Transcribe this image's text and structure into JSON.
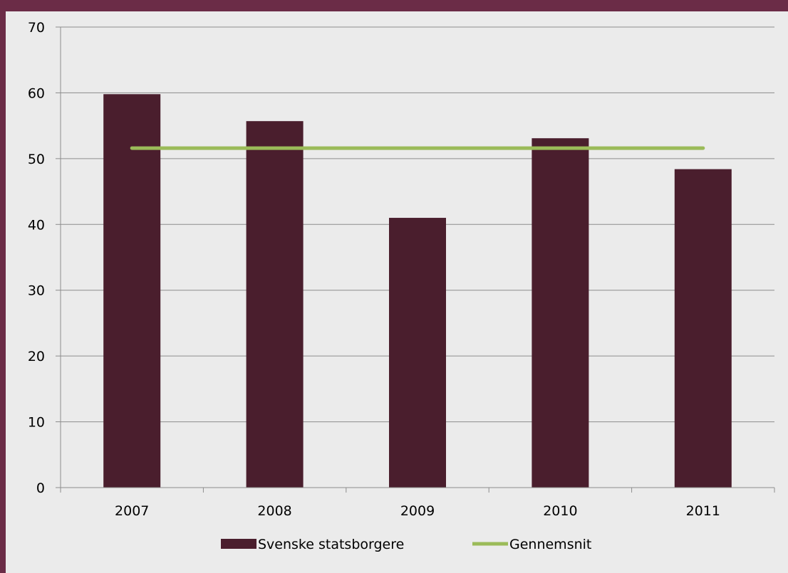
{
  "chart_data": {
    "type": "bar",
    "categories": [
      "2007",
      "2008",
      "2009",
      "2010",
      "2011"
    ],
    "series": [
      {
        "name": "Svenske statsborgere",
        "type": "bar",
        "values": [
          59.8,
          55.7,
          41.0,
          53.1,
          48.4
        ],
        "color": "#4a1e2d"
      },
      {
        "name": "Gennemsnit",
        "type": "line",
        "values": [
          51.6,
          51.6,
          51.6,
          51.6,
          51.6
        ],
        "color": "#9bbb59"
      }
    ],
    "ylim": [
      0,
      70
    ],
    "yticks": [
      "0",
      "10",
      "20",
      "30",
      "40",
      "50",
      "60",
      "70"
    ],
    "grid": true,
    "legend": "bottom",
    "title": "",
    "xlabel": "",
    "ylabel": ""
  },
  "colors": {
    "frame": "#6b2c47",
    "plot_background": "#ebebeb",
    "gridline": "#8c8c8c"
  }
}
